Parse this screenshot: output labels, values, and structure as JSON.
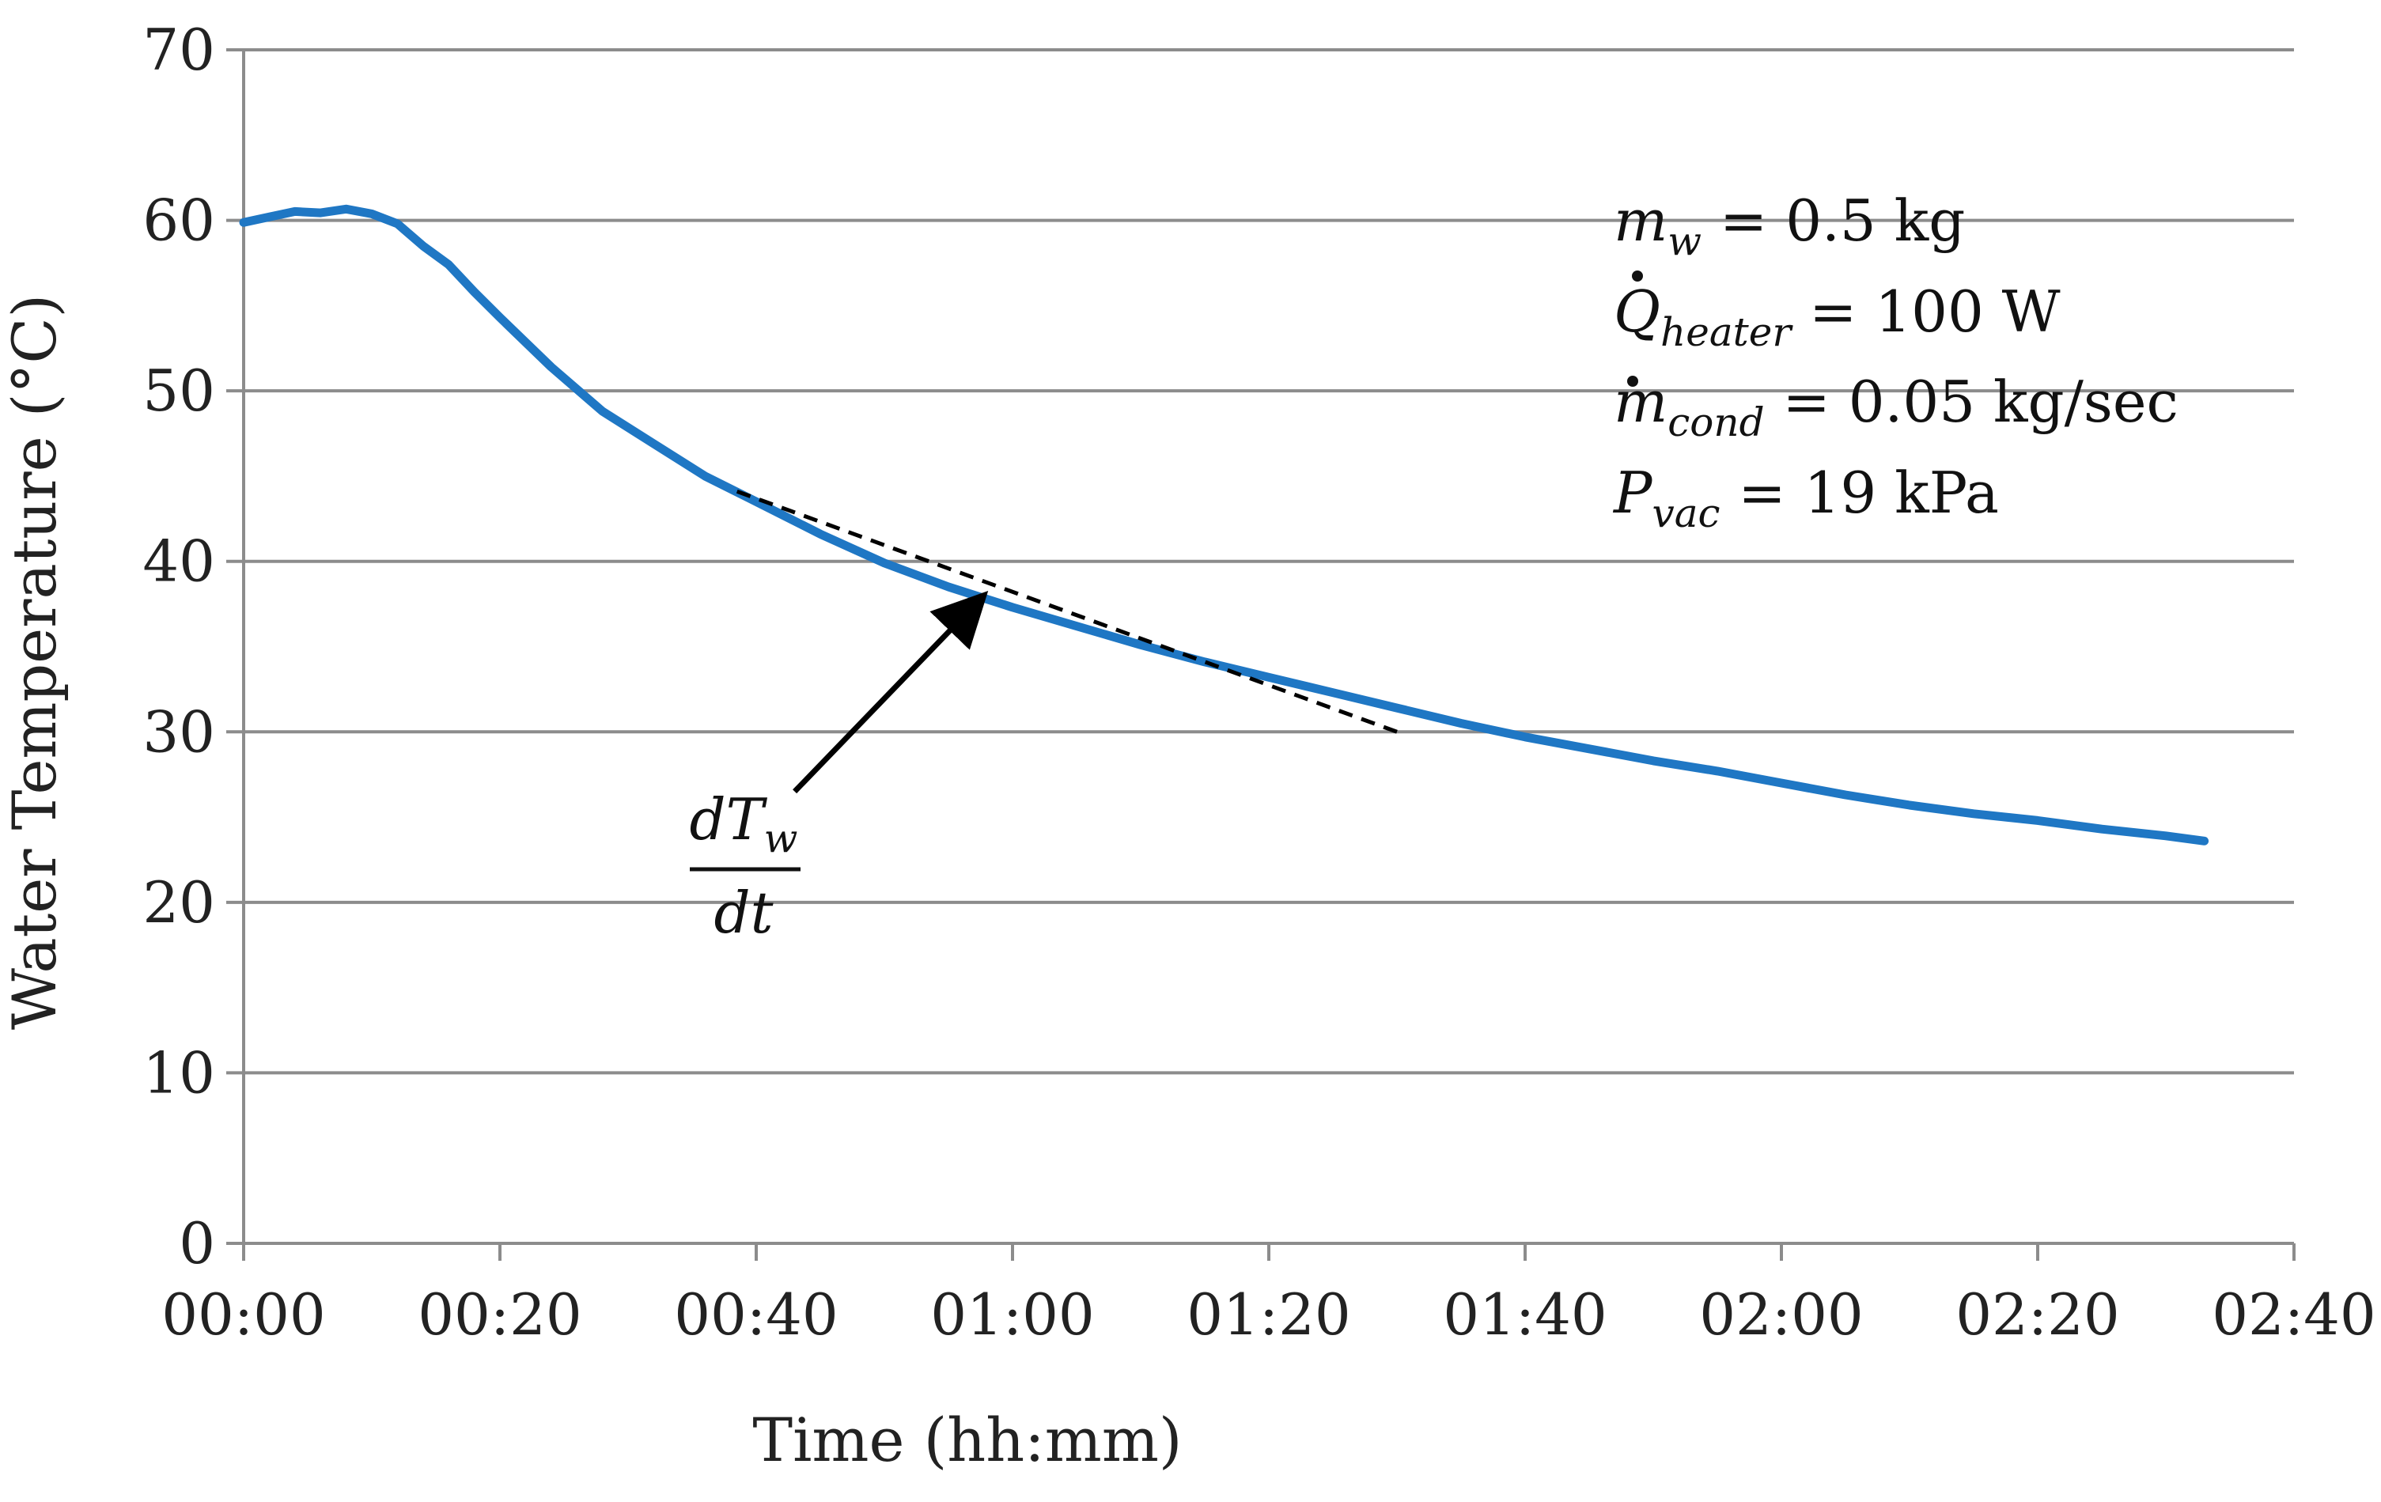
{
  "chart_data": {
    "type": "line",
    "title": "",
    "xlabel": "Time (hh:mm)",
    "ylabel": "Water Temperature (°C)",
    "x_unit": "minutes",
    "xlim": [
      0,
      160
    ],
    "ylim": [
      0,
      70
    ],
    "x_ticks": [
      0,
      20,
      40,
      60,
      80,
      100,
      120,
      140,
      160
    ],
    "x_tick_labels": [
      "00:00",
      "00:20",
      "00:40",
      "01:00",
      "01:20",
      "01:40",
      "02:00",
      "02:20",
      "02:40"
    ],
    "y_ticks": [
      0,
      10,
      20,
      30,
      40,
      50,
      60,
      70
    ],
    "y_tick_labels": [
      "0",
      "10",
      "20",
      "30",
      "40",
      "50",
      "60",
      "70"
    ],
    "grid": true,
    "series": [
      {
        "name": "Water temperature",
        "color": "#1f77c4",
        "x": [
          0,
          2,
          4,
          6,
          8,
          10,
          12,
          14,
          16,
          18,
          20,
          24,
          28,
          32,
          36,
          40,
          45,
          50,
          55,
          60,
          65,
          70,
          75,
          80,
          85,
          90,
          95,
          100,
          105,
          110,
          115,
          120,
          125,
          130,
          135,
          140,
          145,
          150,
          153
        ],
        "y": [
          60.0,
          60.2,
          60.4,
          60.5,
          60.6,
          60.5,
          59.8,
          58.5,
          57.4,
          55.8,
          54.3,
          51.4,
          48.8,
          46.9,
          45.0,
          43.5,
          41.6,
          39.9,
          38.5,
          37.3,
          36.2,
          35.1,
          34.1,
          33.2,
          32.3,
          31.4,
          30.5,
          29.7,
          29.0,
          28.3,
          27.7,
          27.0,
          26.3,
          25.7,
          25.2,
          24.8,
          24.3,
          23.9,
          23.6
        ]
      }
    ],
    "tangent_line": {
      "style": "dashed",
      "color": "#000000",
      "x": [
        38.5,
        90
      ],
      "y": [
        44.1,
        30.0
      ]
    },
    "annotation_arrow": {
      "label_numerator": "dT",
      "label_numerator_sub": "w",
      "label_denominator": "dt",
      "from": [
        43,
        26.5
      ],
      "to": [
        57.5,
        37.8
      ]
    },
    "parameters": [
      {
        "symbol": "m",
        "sub": "w",
        "rest": " = 0.5 kg",
        "dot": false
      },
      {
        "symbol": "Q",
        "sub": "heater",
        "rest": " = 100 W",
        "dot": true
      },
      {
        "symbol": "m",
        "sub": "cond",
        "rest": " = 0.05 kg/sec",
        "dot": true
      },
      {
        "symbol": "P",
        "sub": "vac",
        "rest": " = 19 kPa",
        "dot": false
      }
    ]
  }
}
